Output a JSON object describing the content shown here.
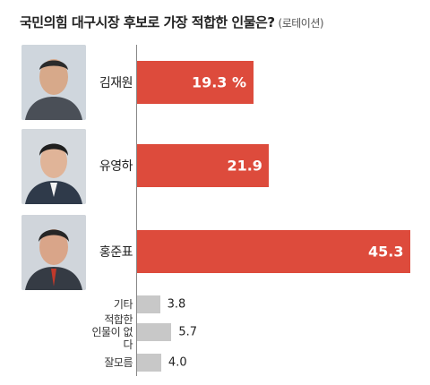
{
  "chart_data": {
    "type": "bar",
    "title": "국민의힘 대구시장 후보로 가장 적합한 인물은?",
    "subtitle": "(로테이션)",
    "categories": [
      "김재원",
      "유영하",
      "홍준표",
      "기타",
      "적합한\n인물이 없다",
      "잘모름"
    ],
    "values": [
      19.3,
      21.9,
      45.3,
      3.8,
      5.7,
      4.0
    ],
    "value_labels": [
      "19.3 %",
      "21.9",
      "45.3",
      "3.8",
      "5.7",
      "4.0"
    ],
    "bar_colors": [
      "#dd4b3c",
      "#dd4b3c",
      "#dd4b3c",
      "#c8c8c8",
      "#c8c8c8",
      "#c8c8c8"
    ],
    "orientation": "horizontal",
    "grid": false
  }
}
